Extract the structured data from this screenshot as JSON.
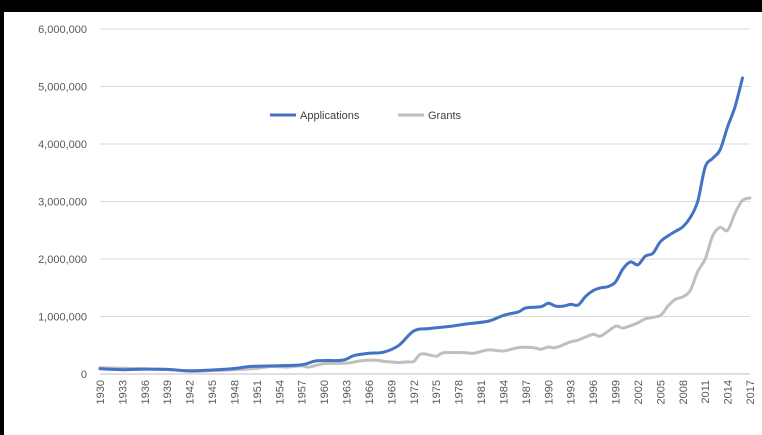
{
  "chart_data": {
    "type": "line",
    "xlabel": "",
    "ylabel": "",
    "title": "",
    "ylim": [
      0,
      6000000
    ],
    "y_ticks": [
      "0",
      "1,000,000",
      "2,000,000",
      "3,000,000",
      "4,000,000",
      "5,000,000",
      "6,000,000"
    ],
    "x_tick_labels": [
      "1930",
      "1933",
      "1936",
      "1939",
      "1942",
      "1945",
      "1948",
      "1951",
      "1954",
      "1957",
      "1960",
      "1963",
      "1966",
      "1969",
      "1972",
      "1975",
      "1978",
      "1981",
      "1984",
      "1987",
      "1990",
      "1993",
      "1996",
      "1999",
      "2002",
      "2005",
      "2008",
      "2011",
      "2014",
      "2017"
    ],
    "grid": "horizontal",
    "legend_position": "top-center",
    "series": [
      {
        "name": "Applications",
        "color": "#4472C4",
        "points": [
          [
            1930,
            90000
          ],
          [
            1933,
            75000
          ],
          [
            1936,
            85000
          ],
          [
            1939,
            80000
          ],
          [
            1942,
            55000
          ],
          [
            1945,
            70000
          ],
          [
            1948,
            95000
          ],
          [
            1950,
            130000
          ],
          [
            1953,
            140000
          ],
          [
            1957,
            160000
          ],
          [
            1959,
            230000
          ],
          [
            1962,
            235000
          ],
          [
            1963,
            260000
          ],
          [
            1964,
            320000
          ],
          [
            1966,
            360000
          ],
          [
            1968,
            380000
          ],
          [
            1970,
            500000
          ],
          [
            1972,
            750000
          ],
          [
            1974,
            790000
          ],
          [
            1977,
            830000
          ],
          [
            1979,
            870000
          ],
          [
            1982,
            920000
          ],
          [
            1984,
            1020000
          ],
          [
            1986,
            1080000
          ],
          [
            1987,
            1150000
          ],
          [
            1989,
            1170000
          ],
          [
            1990,
            1230000
          ],
          [
            1991,
            1180000
          ],
          [
            1992,
            1180000
          ],
          [
            1993,
            1210000
          ],
          [
            1994,
            1200000
          ],
          [
            1995,
            1350000
          ],
          [
            1996,
            1450000
          ],
          [
            1997,
            1500000
          ],
          [
            1998,
            1520000
          ],
          [
            1999,
            1600000
          ],
          [
            2000,
            1830000
          ],
          [
            2001,
            1950000
          ],
          [
            2002,
            1900000
          ],
          [
            2003,
            2050000
          ],
          [
            2004,
            2100000
          ],
          [
            2005,
            2300000
          ],
          [
            2006,
            2400000
          ],
          [
            2007,
            2480000
          ],
          [
            2008,
            2560000
          ],
          [
            2009,
            2720000
          ],
          [
            2010,
            3000000
          ],
          [
            2011,
            3600000
          ],
          [
            2012,
            3750000
          ],
          [
            2013,
            3900000
          ],
          [
            2014,
            4300000
          ],
          [
            2015,
            4650000
          ],
          [
            2016,
            5150000
          ]
        ]
      },
      {
        "name": "Grants",
        "color": "#BFBFBF",
        "points": [
          [
            1930,
            110000
          ],
          [
            1933,
            100000
          ],
          [
            1936,
            90000
          ],
          [
            1939,
            80000
          ],
          [
            1942,
            45000
          ],
          [
            1945,
            60000
          ],
          [
            1948,
            75000
          ],
          [
            1951,
            100000
          ],
          [
            1953,
            130000
          ],
          [
            1955,
            120000
          ],
          [
            1957,
            140000
          ],
          [
            1958,
            120000
          ],
          [
            1960,
            180000
          ],
          [
            1963,
            190000
          ],
          [
            1965,
            230000
          ],
          [
            1967,
            240000
          ],
          [
            1968,
            220000
          ],
          [
            1970,
            200000
          ],
          [
            1971,
            210000
          ],
          [
            1972,
            220000
          ],
          [
            1973,
            350000
          ],
          [
            1975,
            310000
          ],
          [
            1976,
            370000
          ],
          [
            1979,
            370000
          ],
          [
            1980,
            360000
          ],
          [
            1982,
            420000
          ],
          [
            1984,
            400000
          ],
          [
            1986,
            460000
          ],
          [
            1988,
            460000
          ],
          [
            1989,
            430000
          ],
          [
            1990,
            470000
          ],
          [
            1991,
            460000
          ],
          [
            1993,
            560000
          ],
          [
            1994,
            590000
          ],
          [
            1996,
            690000
          ],
          [
            1997,
            660000
          ],
          [
            1999,
            830000
          ],
          [
            2000,
            800000
          ],
          [
            2002,
            890000
          ],
          [
            2003,
            960000
          ],
          [
            2005,
            1020000
          ],
          [
            2006,
            1180000
          ],
          [
            2007,
            1300000
          ],
          [
            2008,
            1340000
          ],
          [
            2009,
            1450000
          ],
          [
            2010,
            1780000
          ],
          [
            2011,
            2000000
          ],
          [
            2012,
            2400000
          ],
          [
            2013,
            2550000
          ],
          [
            2014,
            2500000
          ],
          [
            2015,
            2800000
          ],
          [
            2016,
            3020000
          ],
          [
            2017,
            3060000
          ]
        ]
      }
    ]
  }
}
